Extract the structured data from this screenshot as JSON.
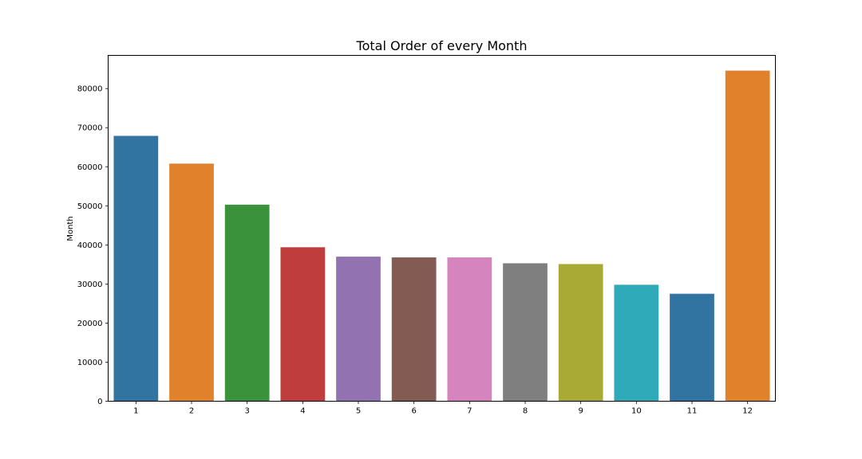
{
  "chart_data": {
    "type": "bar",
    "title": "Total Order of every Month",
    "xlabel": "",
    "ylabel": "Month",
    "categories": [
      "1",
      "2",
      "3",
      "4",
      "5",
      "6",
      "7",
      "8",
      "9",
      "10",
      "11",
      "12"
    ],
    "values": [
      67900,
      60800,
      50300,
      39400,
      37000,
      36800,
      36800,
      35300,
      35100,
      29800,
      27500,
      84600
    ],
    "colors": [
      "#3274a1",
      "#e1812c",
      "#3a923a",
      "#c03d3e",
      "#9372b2",
      "#845b53",
      "#d684bd",
      "#7f7f7f",
      "#a9aa35",
      "#2eaab8",
      "#3274a1",
      "#e1812c"
    ],
    "ylim": [
      0,
      88500
    ],
    "yticks": [
      0,
      10000,
      20000,
      30000,
      40000,
      50000,
      60000,
      70000,
      80000
    ],
    "grid": false,
    "legend": "none"
  }
}
